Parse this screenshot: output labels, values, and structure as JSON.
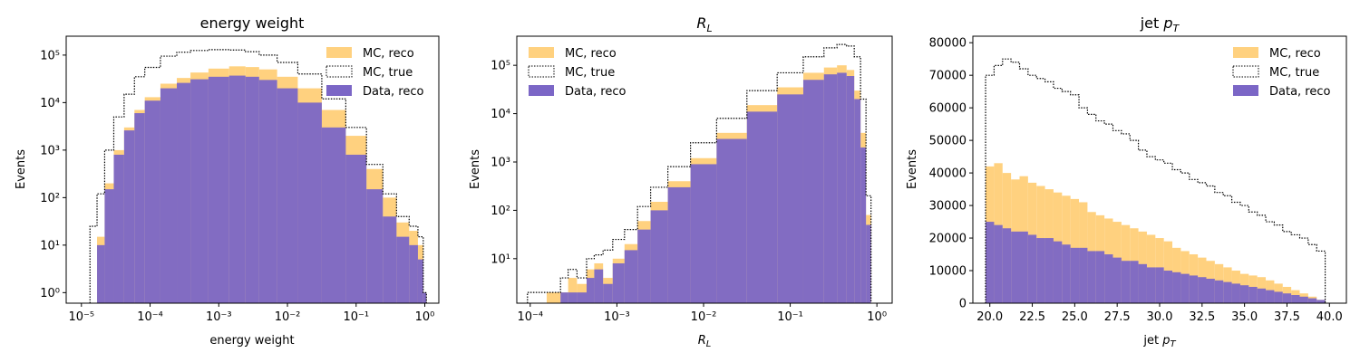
{
  "colors": {
    "mc_reco": "#ffd17f",
    "mc_true": "#000000",
    "data_reco": "#7b66c6"
  },
  "chart_data": [
    {
      "type": "bar",
      "title": "energy weight",
      "xlabel": "energy weight",
      "ylabel": "Events",
      "xscale": "log",
      "yscale": "log",
      "xlim": [
        6e-06,
        1.6
      ],
      "ylim": [
        0.6,
        250000
      ],
      "xticks": [
        {
          "value": 1e-05,
          "label": "10⁻⁵"
        },
        {
          "value": 0.0001,
          "label": "10⁻⁴"
        },
        {
          "value": 0.001,
          "label": "10⁻³"
        },
        {
          "value": 0.01,
          "label": "10⁻²"
        },
        {
          "value": 0.1,
          "label": "10⁻¹"
        },
        {
          "value": 1,
          "label": "10⁰"
        }
      ],
      "yticks": [
        {
          "value": 1,
          "label": "10⁰"
        },
        {
          "value": 10,
          "label": "10¹"
        },
        {
          "value": 100,
          "label": "10²"
        },
        {
          "value": 1000,
          "label": "10³"
        },
        {
          "value": 10000,
          "label": "10⁴"
        },
        {
          "value": 100000,
          "label": "10⁵"
        }
      ],
      "legend": [
        "MC, reco",
        "MC, true",
        "Data, reco"
      ],
      "legend_position": "top-right",
      "x": [
        1.5e-05,
        1.9e-05,
        2.5e-05,
        3.5e-05,
        5e-05,
        7e-05,
        0.0001,
        0.0002,
        0.0003,
        0.0005,
        0.001,
        0.002,
        0.003,
        0.005,
        0.01,
        0.02,
        0.05,
        0.1,
        0.2,
        0.3,
        0.5,
        0.7,
        0.9,
        1.0
      ],
      "series": [
        {
          "name": "MC, reco",
          "values": [
            0,
            15,
            200,
            1000,
            3000,
            7000,
            13000,
            25000,
            33000,
            43000,
            52000,
            58000,
            56000,
            50000,
            35000,
            20000,
            7000,
            2000,
            400,
            100,
            30,
            20,
            10,
            1
          ]
        },
        {
          "name": "MC, true",
          "values": [
            25,
            120,
            1000,
            5000,
            15000,
            35000,
            55000,
            95000,
            115000,
            125000,
            130000,
            128000,
            118000,
            100000,
            70000,
            40000,
            12000,
            3000,
            500,
            120,
            40,
            25,
            15,
            1
          ]
        },
        {
          "name": "Data, reco",
          "values": [
            0,
            10,
            150,
            800,
            2600,
            6000,
            11000,
            20000,
            26000,
            31000,
            35000,
            37000,
            35000,
            30000,
            20000,
            10000,
            3000,
            800,
            150,
            40,
            15,
            10,
            5,
            1
          ]
        }
      ]
    },
    {
      "type": "bar",
      "title": "R_L",
      "xlabel": "R_L",
      "ylabel": "Events",
      "xscale": "log",
      "yscale": "log",
      "xlim": [
        7e-05,
        1.5
      ],
      "ylim": [
        1.2,
        400000
      ],
      "xticks": [
        {
          "value": 0.0001,
          "label": "10⁻⁴"
        },
        {
          "value": 0.001,
          "label": "10⁻³"
        },
        {
          "value": 0.01,
          "label": "10⁻²"
        },
        {
          "value": 0.1,
          "label": "10⁻¹"
        },
        {
          "value": 1,
          "label": "10⁰"
        }
      ],
      "yticks": [
        {
          "value": 10,
          "label": "10¹"
        },
        {
          "value": 100,
          "label": "10²"
        },
        {
          "value": 1000,
          "label": "10³"
        },
        {
          "value": 10000,
          "label": "10⁴"
        },
        {
          "value": 100000,
          "label": "10⁵"
        }
      ],
      "legend": [
        "MC, reco",
        "MC, true",
        "Data, reco"
      ],
      "legend_position": "top-left",
      "x": [
        0.00012,
        0.0002,
        0.00025,
        0.0003,
        0.0004,
        0.0005,
        0.0006,
        0.0008,
        0.001,
        0.0015,
        0.002,
        0.003,
        0.005,
        0.01,
        0.02,
        0.05,
        0.1,
        0.2,
        0.3,
        0.4,
        0.5,
        0.6,
        0.7,
        0.8
      ],
      "series": [
        {
          "name": "MC, reco",
          "values": [
            0,
            2,
            2,
            4,
            3,
            6,
            8,
            4,
            10,
            20,
            60,
            150,
            400,
            1200,
            4000,
            15000,
            35000,
            70000,
            90000,
            100000,
            80000,
            30000,
            4000,
            80
          ]
        },
        {
          "name": "MC, true",
          "values": [
            2,
            2,
            4,
            6,
            4,
            10,
            12,
            15,
            25,
            40,
            120,
            300,
            800,
            2500,
            8000,
            30000,
            70000,
            150000,
            230000,
            270000,
            250000,
            150000,
            20000,
            200
          ]
        },
        {
          "name": "Data, reco",
          "values": [
            0,
            0,
            2,
            2,
            2,
            4,
            6,
            3,
            8,
            15,
            40,
            100,
            300,
            900,
            3000,
            11000,
            25000,
            50000,
            65000,
            70000,
            60000,
            20000,
            2000,
            50
          ]
        }
      ]
    },
    {
      "type": "bar",
      "title": "jet p_T",
      "xlabel": "jet p_T",
      "ylabel": "Events",
      "xscale": "linear",
      "yscale": "linear",
      "xlim": [
        19,
        41
      ],
      "ylim": [
        0,
        82000
      ],
      "xticks": [
        {
          "value": 20,
          "label": "20.0"
        },
        {
          "value": 22.5,
          "label": "22.5"
        },
        {
          "value": 25,
          "label": "25.0"
        },
        {
          "value": 27.5,
          "label": "27.5"
        },
        {
          "value": 30,
          "label": "30.0"
        },
        {
          "value": 32.5,
          "label": "32.5"
        },
        {
          "value": 35,
          "label": "35.0"
        },
        {
          "value": 37.5,
          "label": "37.5"
        },
        {
          "value": 40,
          "label": "40.0"
        }
      ],
      "yticks": [
        {
          "value": 0,
          "label": "0"
        },
        {
          "value": 10000,
          "label": "10000"
        },
        {
          "value": 20000,
          "label": "20000"
        },
        {
          "value": 30000,
          "label": "30000"
        },
        {
          "value": 40000,
          "label": "40000"
        },
        {
          "value": 50000,
          "label": "50000"
        },
        {
          "value": 60000,
          "label": "60000"
        },
        {
          "value": 70000,
          "label": "70000"
        },
        {
          "value": 80000,
          "label": "80000"
        }
      ],
      "legend": [
        "MC, reco",
        "MC, true",
        "Data, reco"
      ],
      "legend_position": "top-right",
      "x": [
        20.0,
        20.5,
        21.0,
        21.5,
        22.0,
        22.5,
        23.0,
        23.5,
        24.0,
        24.5,
        25.0,
        25.5,
        26.0,
        26.5,
        27.0,
        27.5,
        28.0,
        28.5,
        29.0,
        29.5,
        30.0,
        30.5,
        31.0,
        31.5,
        32.0,
        32.5,
        33.0,
        33.5,
        34.0,
        34.5,
        35.0,
        35.5,
        36.0,
        36.5,
        37.0,
        37.5,
        38.0,
        38.5,
        39.0,
        39.5
      ],
      "series": [
        {
          "name": "MC, reco",
          "values": [
            42000,
            43000,
            40000,
            38000,
            39000,
            37000,
            36000,
            35000,
            34000,
            33000,
            32000,
            31000,
            28000,
            27000,
            26000,
            25000,
            24000,
            23000,
            22000,
            21000,
            20000,
            19000,
            17000,
            16000,
            15000,
            14000,
            13000,
            12000,
            11000,
            10000,
            9000,
            8500,
            8000,
            7000,
            6000,
            5000,
            4000,
            3000,
            2000,
            1000
          ]
        },
        {
          "name": "MC, true",
          "values": [
            70000,
            73000,
            75000,
            74000,
            72000,
            70000,
            69000,
            68000,
            66000,
            65000,
            64000,
            60000,
            58000,
            56000,
            55000,
            53000,
            52000,
            50000,
            47000,
            45000,
            44000,
            43000,
            41000,
            40000,
            38000,
            37000,
            36000,
            34000,
            33000,
            31000,
            30000,
            28000,
            27000,
            25000,
            24000,
            22000,
            21000,
            20000,
            18000,
            16000
          ]
        },
        {
          "name": "Data, reco",
          "values": [
            25000,
            24000,
            23000,
            22000,
            22000,
            21000,
            20000,
            20000,
            19000,
            18000,
            17000,
            17000,
            16000,
            16000,
            15000,
            14000,
            13000,
            13000,
            12000,
            11000,
            11000,
            10000,
            9500,
            9000,
            8500,
            8000,
            7500,
            7000,
            6500,
            6000,
            5500,
            5000,
            4500,
            4000,
            3500,
            3000,
            2500,
            2000,
            1500,
            1000
          ]
        }
      ]
    }
  ]
}
